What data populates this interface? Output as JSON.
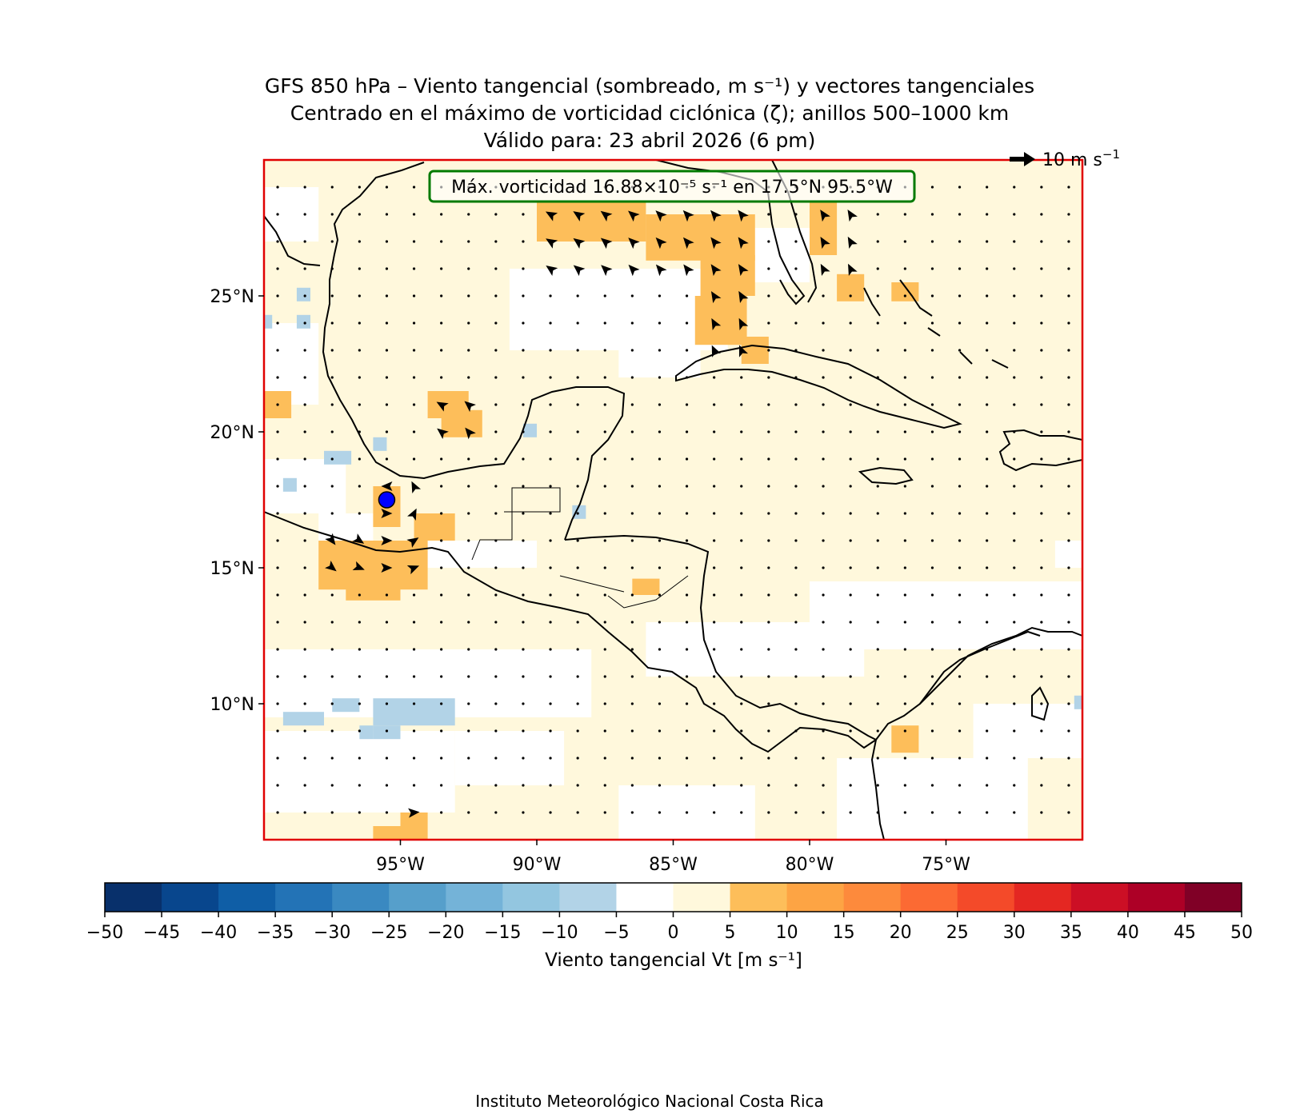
{
  "title": {
    "line1": "GFS 850 hPa – Viento tangencial (sombreado, m s⁻¹) y vectores tangenciales",
    "line2": "Centrado en el máximo de vorticidad ciclónica (ζ); anillos 500–1000 km",
    "line3": "Válido para: 23 abril 2026 (6 pm)"
  },
  "annotation": {
    "max_vorticity": "Máx. vorticidad 16.88×10⁻⁵ s⁻¹ en 17.5°N 95.5°W"
  },
  "reference_vector": {
    "label": "10 m s",
    "exponent": "−1"
  },
  "footer": "Instituto Meteorológico Nacional Costa Rica",
  "map": {
    "lon_range": [
      -100,
      -70
    ],
    "lat_range": [
      5,
      30
    ],
    "center_marker": {
      "lon": -95.5,
      "lat": 17.5
    },
    "lon_ticks": [
      {
        "value": -95,
        "label": "95°W"
      },
      {
        "value": -90,
        "label": "90°W"
      },
      {
        "value": -85,
        "label": "85°W"
      },
      {
        "value": -80,
        "label": "80°W"
      },
      {
        "value": -75,
        "label": "75°W"
      }
    ],
    "lat_ticks": [
      {
        "value": 25,
        "label": "25°N"
      },
      {
        "value": 20,
        "label": "20°N"
      },
      {
        "value": 15,
        "label": "15°N"
      },
      {
        "value": 10,
        "label": "10°N"
      }
    ]
  },
  "colorbar": {
    "label": "Viento tangencial Vt [m s⁻¹]",
    "ticks": [
      "−50",
      "−45",
      "−40",
      "−35",
      "−30",
      "−25",
      "−20",
      "−15",
      "−10",
      "−5",
      "0",
      "5",
      "10",
      "15",
      "20",
      "25",
      "30",
      "35",
      "40",
      "45",
      "50"
    ],
    "colors": [
      "#08306b",
      "#08468d",
      "#0f5ea6",
      "#2373b6",
      "#3a89c1",
      "#569fcb",
      "#74b3d8",
      "#93c6e0",
      "#b2d3e7",
      "#ffffff",
      "#fff8dc",
      "#fdbe5a",
      "#fda444",
      "#fd8a3c",
      "#fc6a33",
      "#f44a29",
      "#e42722",
      "#cc0f25",
      "#ad0026",
      "#800026"
    ]
  },
  "chart_data": {
    "type": "heatmap",
    "field": "Viento tangencial Vt (m s⁻¹) a 850 hPa, con vectores tangenciales",
    "x_range": [
      -100,
      -70
    ],
    "y_range": [
      5,
      30
    ],
    "approx_positive_5_10_regions": [
      {
        "lon": [
          -90,
          -82
        ],
        "lat": [
          26,
          28.5
        ]
      },
      {
        "lon": [
          -84,
          -82
        ],
        "lat": [
          23,
          26
        ]
      },
      {
        "lon": [
          -94,
          -92
        ],
        "lat": [
          20,
          21.5
        ]
      },
      {
        "lon": [
          -98,
          -94
        ],
        "lat": [
          14,
          16
        ]
      },
      {
        "lon": [
          -96,
          -94
        ],
        "lat": [
          16,
          18
        ]
      },
      {
        "lon": [
          -77,
          -76
        ],
        "lat": [
          8,
          9
        ]
      }
    ],
    "approx_negative_5_10_regions": [
      {
        "lon": [
          -99,
          -93
        ],
        "lat": [
          9,
          10
        ]
      },
      {
        "lon": [
          -98,
          -97
        ],
        "lat": [
          18.5,
          19.5
        ]
      }
    ]
  }
}
